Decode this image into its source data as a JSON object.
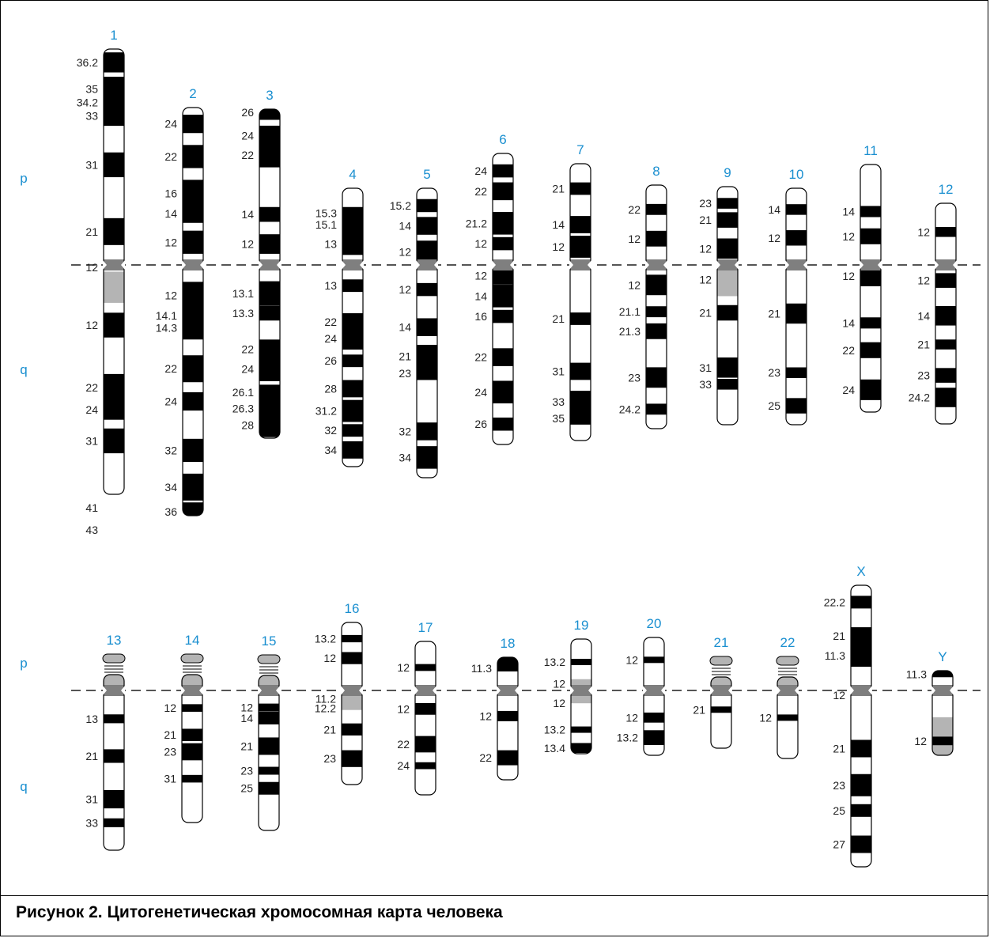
{
  "caption": "Рисунок 2. Цитогенетическая хромосомная карта человека",
  "arm_labels": {
    "p": "p",
    "q": "q"
  },
  "colors": {
    "chromosome_number": "#1a8fd0",
    "band": "#000000",
    "centromere": "#7f7f7f",
    "heterochromatin": "#b4b4b4",
    "arm_label": "#1a8fd0"
  },
  "chromosomes": [
    {
      "id": "1",
      "bands": [
        {
          "label": "36.2",
          "pos": 0.03
        },
        {
          "label": "35",
          "pos": 0.09
        },
        {
          "label": "34.2",
          "pos": 0.12
        },
        {
          "label": "33",
          "pos": 0.15
        },
        {
          "label": "31",
          "pos": 0.26
        },
        {
          "label": "21",
          "pos": 0.41
        },
        {
          "label": "12",
          "pos": 0.49
        },
        {
          "label": "12",
          "pos": 0.62
        },
        {
          "label": "22",
          "pos": 0.76
        },
        {
          "label": "24",
          "pos": 0.81
        },
        {
          "label": "31",
          "pos": 0.88
        },
        {
          "label": "41",
          "pos": 1.03
        },
        {
          "label": "43",
          "pos": 1.08
        }
      ]
    },
    {
      "id": "2",
      "bands": [
        {
          "label": "24",
          "pos": 0.04
        },
        {
          "label": "22",
          "pos": 0.12
        },
        {
          "label": "16",
          "pos": 0.21
        },
        {
          "label": "14",
          "pos": 0.26
        },
        {
          "label": "12",
          "pos": 0.33
        },
        {
          "label": "12",
          "pos": 0.46
        },
        {
          "label": "14.1",
          "pos": 0.51
        },
        {
          "label": "14.3",
          "pos": 0.54
        },
        {
          "label": "22",
          "pos": 0.64
        },
        {
          "label": "24",
          "pos": 0.72
        },
        {
          "label": "32",
          "pos": 0.84
        },
        {
          "label": "34",
          "pos": 0.93
        },
        {
          "label": "36",
          "pos": 0.99
        }
      ]
    },
    {
      "id": "3",
      "bands": [
        {
          "label": "26",
          "pos": 0.01
        },
        {
          "label": "24",
          "pos": 0.08
        },
        {
          "label": "22",
          "pos": 0.14
        },
        {
          "label": "14",
          "pos": 0.32
        },
        {
          "label": "12",
          "pos": 0.41
        },
        {
          "label": "13.1",
          "pos": 0.56
        },
        {
          "label": "13.3",
          "pos": 0.62
        },
        {
          "label": "22",
          "pos": 0.73
        },
        {
          "label": "24",
          "pos": 0.79
        },
        {
          "label": "26.1",
          "pos": 0.86
        },
        {
          "label": "26.3",
          "pos": 0.91
        },
        {
          "label": "28",
          "pos": 0.96
        }
      ]
    },
    {
      "id": "4",
      "bands": [
        {
          "label": "15.3",
          "pos": 0.09
        },
        {
          "label": "15.1",
          "pos": 0.13
        },
        {
          "label": "13",
          "pos": 0.2
        },
        {
          "label": "13",
          "pos": 0.35
        },
        {
          "label": "22",
          "pos": 0.48
        },
        {
          "label": "24",
          "pos": 0.54
        },
        {
          "label": "26",
          "pos": 0.62
        },
        {
          "label": "28",
          "pos": 0.72
        },
        {
          "label": "31.2",
          "pos": 0.8
        },
        {
          "label": "32",
          "pos": 0.87
        },
        {
          "label": "34",
          "pos": 0.94
        }
      ]
    },
    {
      "id": "5",
      "bands": [
        {
          "label": "15.2",
          "pos": 0.06
        },
        {
          "label": "14",
          "pos": 0.13
        },
        {
          "label": "12",
          "pos": 0.22
        },
        {
          "label": "12",
          "pos": 0.35
        },
        {
          "label": "14",
          "pos": 0.48
        },
        {
          "label": "21",
          "pos": 0.58
        },
        {
          "label": "23",
          "pos": 0.64
        },
        {
          "label": "32",
          "pos": 0.84
        },
        {
          "label": "34",
          "pos": 0.93
        }
      ]
    },
    {
      "id": "6",
      "bands": [
        {
          "label": "24",
          "pos": 0.06
        },
        {
          "label": "22",
          "pos": 0.13
        },
        {
          "label": "21.2",
          "pos": 0.24
        },
        {
          "label": "12",
          "pos": 0.31
        },
        {
          "label": "12",
          "pos": 0.42
        },
        {
          "label": "14",
          "pos": 0.49
        },
        {
          "label": "16",
          "pos": 0.56
        },
        {
          "label": "22",
          "pos": 0.7
        },
        {
          "label": "24",
          "pos": 0.82
        },
        {
          "label": "26",
          "pos": 0.93
        }
      ]
    },
    {
      "id": "7",
      "bands": [
        {
          "label": "21",
          "pos": 0.09
        },
        {
          "label": "14",
          "pos": 0.22
        },
        {
          "label": "12",
          "pos": 0.3
        },
        {
          "label": "21",
          "pos": 0.56
        },
        {
          "label": "31",
          "pos": 0.75
        },
        {
          "label": "33",
          "pos": 0.86
        },
        {
          "label": "35",
          "pos": 0.92
        }
      ]
    },
    {
      "id": "8",
      "bands": [
        {
          "label": "22",
          "pos": 0.1
        },
        {
          "label": "12",
          "pos": 0.22
        },
        {
          "label": "12",
          "pos": 0.41
        },
        {
          "label": "21.1",
          "pos": 0.52
        },
        {
          "label": "21.3",
          "pos": 0.6
        },
        {
          "label": "23",
          "pos": 0.79
        },
        {
          "label": "24.2",
          "pos": 0.92
        }
      ]
    },
    {
      "id": "9",
      "bands": [
        {
          "label": "23",
          "pos": 0.07
        },
        {
          "label": "21",
          "pos": 0.14
        },
        {
          "label": "12",
          "pos": 0.26
        },
        {
          "label": "12",
          "pos": 0.39
        },
        {
          "label": "21",
          "pos": 0.53
        },
        {
          "label": "31",
          "pos": 0.76
        },
        {
          "label": "33",
          "pos": 0.83
        }
      ]
    },
    {
      "id": "10",
      "bands": [
        {
          "label": "14",
          "pos": 0.09
        },
        {
          "label": "12",
          "pos": 0.21
        },
        {
          "label": "21",
          "pos": 0.53
        },
        {
          "label": "23",
          "pos": 0.78
        },
        {
          "label": "25",
          "pos": 0.92
        }
      ]
    },
    {
      "id": "11",
      "bands": [
        {
          "label": "14",
          "pos": 0.19
        },
        {
          "label": "12",
          "pos": 0.29
        },
        {
          "label": "12",
          "pos": 0.45
        },
        {
          "label": "14",
          "pos": 0.64
        },
        {
          "label": "22",
          "pos": 0.75
        },
        {
          "label": "24",
          "pos": 0.91
        }
      ]
    },
    {
      "id": "12",
      "bands": [
        {
          "label": "12",
          "pos": 0.13
        },
        {
          "label": "12",
          "pos": 0.35
        },
        {
          "label": "14",
          "pos": 0.51
        },
        {
          "label": "21",
          "pos": 0.64
        },
        {
          "label": "23",
          "pos": 0.78
        },
        {
          "label": "24.2",
          "pos": 0.88
        }
      ]
    },
    {
      "id": "13",
      "bands": [
        {
          "label": "13",
          "pos": 0.33
        },
        {
          "label": "21",
          "pos": 0.52
        },
        {
          "label": "31",
          "pos": 0.74
        },
        {
          "label": "33",
          "pos": 0.86
        }
      ]
    },
    {
      "id": "14",
      "bands": [
        {
          "label": "12",
          "pos": 0.32
        },
        {
          "label": "21",
          "pos": 0.48
        },
        {
          "label": "23",
          "pos": 0.58
        },
        {
          "label": "31",
          "pos": 0.74
        }
      ]
    },
    {
      "id": "15",
      "bands": [
        {
          "label": "12",
          "pos": 0.3
        },
        {
          "label": "14",
          "pos": 0.36
        },
        {
          "label": "21",
          "pos": 0.52
        },
        {
          "label": "23",
          "pos": 0.66
        },
        {
          "label": "25",
          "pos": 0.76
        }
      ]
    },
    {
      "id": "16",
      "bands": [
        {
          "label": "13.2",
          "pos": 0.1
        },
        {
          "label": "12",
          "pos": 0.22
        },
        {
          "label": "11.2",
          "pos": 0.47
        },
        {
          "label": "12.2",
          "pos": 0.53
        },
        {
          "label": "21",
          "pos": 0.66
        },
        {
          "label": "23",
          "pos": 0.84
        }
      ]
    },
    {
      "id": "17",
      "bands": [
        {
          "label": "12",
          "pos": 0.17
        },
        {
          "label": "12",
          "pos": 0.44
        },
        {
          "label": "22",
          "pos": 0.67
        },
        {
          "label": "24",
          "pos": 0.81
        }
      ]
    },
    {
      "id": "18",
      "bands": [
        {
          "label": "11.3",
          "pos": 0.09
        },
        {
          "label": "12",
          "pos": 0.48
        },
        {
          "label": "22",
          "pos": 0.82
        }
      ]
    },
    {
      "id": "19",
      "bands": [
        {
          "label": "13.2",
          "pos": 0.2
        },
        {
          "label": "12",
          "pos": 0.39
        },
        {
          "label": "12",
          "pos": 0.56
        },
        {
          "label": "13.2",
          "pos": 0.79
        },
        {
          "label": "13.4",
          "pos": 0.95
        }
      ]
    },
    {
      "id": "20",
      "bands": [
        {
          "label": "12",
          "pos": 0.19
        },
        {
          "label": "12",
          "pos": 0.68
        },
        {
          "label": "13.2",
          "pos": 0.85
        }
      ]
    },
    {
      "id": "21",
      "bands": [
        {
          "label": "21",
          "pos": 0.58
        }
      ]
    },
    {
      "id": "22",
      "bands": [
        {
          "label": "12",
          "pos": 0.6
        }
      ]
    },
    {
      "id": "X",
      "bands": [
        {
          "label": "22.2",
          "pos": 0.06
        },
        {
          "label": "21",
          "pos": 0.18
        },
        {
          "label": "11.3",
          "pos": 0.25
        },
        {
          "label": "12",
          "pos": 0.39
        },
        {
          "label": "21",
          "pos": 0.58
        },
        {
          "label": "23",
          "pos": 0.71
        },
        {
          "label": "25",
          "pos": 0.8
        },
        {
          "label": "27",
          "pos": 0.92
        }
      ]
    },
    {
      "id": "Y",
      "bands": [
        {
          "label": "11.3",
          "pos": 0.04
        },
        {
          "label": "12",
          "pos": 0.83
        }
      ]
    }
  ]
}
